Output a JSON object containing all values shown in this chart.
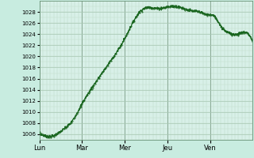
{
  "background_color": "#c8ece0",
  "plot_bg_color": "#d8f0e8",
  "line_color": "#1a6620",
  "grid_major_color": "#a8c8b4",
  "grid_minor_color": "#c0dcc8",
  "vgrid_major_color": "#8aaa96",
  "vgrid_minor_color": "#b8d4c4",
  "tick_labels": [
    "Lun",
    "Mar",
    "Mer",
    "Jeu",
    "Ven"
  ],
  "ylim": [
    1005.0,
    1030.0
  ],
  "yticks": [
    1006,
    1008,
    1010,
    1012,
    1014,
    1016,
    1018,
    1020,
    1022,
    1024,
    1026,
    1028
  ],
  "knots_t": [
    0,
    0.2,
    0.35,
    0.55,
    0.75,
    1.0,
    1.2,
    1.45,
    1.7,
    1.95,
    2.15,
    2.35,
    2.6,
    2.8,
    3.0,
    3.15,
    3.35,
    3.55,
    3.75,
    3.95,
    4.1,
    4.25,
    4.45,
    4.65,
    4.85,
    5.0
  ],
  "knots_p": [
    1006.2,
    1005.6,
    1005.8,
    1006.8,
    1008.2,
    1011.5,
    1014.0,
    1016.8,
    1019.5,
    1022.5,
    1025.5,
    1028.0,
    1028.8,
    1028.6,
    1028.9,
    1029.0,
    1028.7,
    1028.2,
    1028.0,
    1027.5,
    1027.2,
    1025.5,
    1024.2,
    1024.0,
    1024.3,
    1022.5
  ]
}
